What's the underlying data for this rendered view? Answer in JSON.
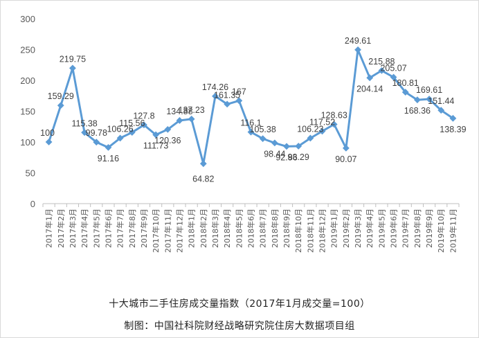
{
  "chart_data": {
    "type": "line",
    "title": "十大城市二手住房成交量指数（2017年1月成交量=100）",
    "subtitle": "制图：中国社科院财经战略研究院住房大数据项目组",
    "ylim": [
      0,
      300
    ],
    "yticks": [
      "0",
      "50",
      "100",
      "150",
      "200",
      "250",
      "300"
    ],
    "grid": false,
    "legend": "none",
    "line_color": "#5b9bd5",
    "categories": [
      "2017年1月",
      "2017年2月",
      "2017年3月",
      "2017年4月",
      "2017年5月",
      "2017年6月",
      "2017年7月",
      "2017年8月",
      "2017年9月",
      "2017年10月",
      "2017年11月",
      "2017年12月",
      "2018年1月",
      "2018年2月",
      "2018年3月",
      "2018年4月",
      "2018年5月",
      "2018年6月",
      "2018年7月",
      "2018年8月",
      "2018年9月",
      "2018年10月",
      "2018年11月",
      "2018年12月",
      "2019年1月",
      "2019年2月",
      "2019年3月",
      "2019年4月",
      "2019年5月",
      "2019年6月",
      "2019年7月",
      "2019年8月",
      "2019年9月",
      "2019年10月",
      "2019年11月"
    ],
    "values": [
      100,
      159.29,
      219.75,
      115.38,
      99.78,
      91.16,
      106.26,
      115.56,
      127.8,
      111.73,
      120.36,
      134.88,
      137.23,
      64.82,
      174.26,
      161.35,
      167,
      116.1,
      105.38,
      98.44,
      92.86,
      93.29,
      106.23,
      117.52,
      128.63,
      90.07,
      249.61,
      204.14,
      215.88,
      205.07,
      180.81,
      168.36,
      169.61,
      151.44,
      138.39
    ],
    "data_labels": [
      "100",
      "159.29",
      "219.75",
      "115.38",
      "99.78",
      "91.16",
      "106.26",
      "115.56",
      "127.8",
      "111.73",
      "120.36",
      "134.88",
      "137.23",
      "64.82",
      "174.26",
      "161.35",
      "167",
      "116.1",
      "105.38",
      "98.44",
      "92.86",
      "93.29",
      "106.23",
      "117.52",
      "128.63",
      "90.07",
      "249.61",
      "204.14",
      "215.88",
      "205.07",
      "180.81",
      "168.36",
      "169.61",
      "151.44",
      "138.39"
    ]
  }
}
